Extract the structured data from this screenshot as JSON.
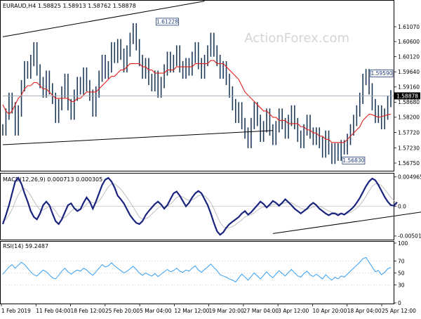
{
  "watermark": "ActionForex.com",
  "time_axis": [
    "1 Feb 2019",
    "11 Feb 04:00",
    "18 Feb 12:00",
    "25 Feb 20:00",
    "5 Mar 04:00",
    "12 Mar 12:00",
    "19 Mar 20:00",
    "27 Mar 04:00",
    "3 Apr 12:00",
    "10 Apr 20:00",
    "18 Apr 04:00",
    "25 Apr 12:00"
  ],
  "chart_data": [
    {
      "type": "line",
      "title": "EURAUD,H4  1.58825 1.58913 1.58762 1.58878",
      "ylim": [
        1.5655,
        1.6185
      ],
      "yticks": [
        "1.61070",
        "1.60600",
        "1.60120",
        "1.59640",
        "1.59160",
        "1.58680",
        "1.58200",
        "1.57720",
        "1.57230",
        "1.56750"
      ],
      "ytick_values": [
        1.6107,
        1.606,
        1.6012,
        1.5964,
        1.5916,
        1.5868,
        1.582,
        1.5772,
        1.5723,
        1.5675
      ],
      "current_price_label": "1.58878",
      "current_price": 1.58878,
      "annotations": [
        {
          "text": "1.61228",
          "x": 53,
          "y": 1.61228
        },
        {
          "text": "1.59590",
          "x": 130,
          "y": 1.5959
        },
        {
          "text": "1.56830",
          "x": 113,
          "y": 1.5683
        }
      ],
      "series": [
        {
          "values": [
            1.578,
            1.583,
            1.588,
            1.585,
            1.578,
            1.584,
            1.592,
            1.598,
            1.596,
            1.6,
            1.604,
            1.597,
            1.593,
            1.59,
            1.595,
            1.591,
            1.588,
            1.582,
            1.586,
            1.59,
            1.594,
            1.586,
            1.583,
            1.589,
            1.593,
            1.591,
            1.596,
            1.592,
            1.589,
            1.584,
            1.59,
            1.595,
            1.6,
            1.596,
            1.598,
            1.604,
            1.601,
            1.605,
            1.602,
            1.598,
            1.603,
            1.607,
            1.61,
            1.605,
            1.6,
            1.596,
            1.599,
            1.594,
            1.592,
            1.595,
            1.59,
            1.593,
            1.597,
            1.601,
            1.598,
            1.6,
            1.603,
            1.598,
            1.596,
            1.599,
            1.597,
            1.601,
            1.604,
            1.599,
            1.596,
            1.6,
            1.603,
            1.607,
            1.603,
            1.6,
            1.596,
            1.598,
            1.594,
            1.59,
            1.586,
            1.582,
            1.585,
            1.58,
            1.577,
            1.574,
            1.58,
            1.585,
            1.581,
            1.576,
            1.579,
            1.583,
            1.578,
            1.575,
            1.579,
            1.583,
            1.58,
            1.577,
            1.581,
            1.584,
            1.58,
            1.576,
            1.574,
            1.578,
            1.581,
            1.577,
            1.575,
            1.577,
            1.574,
            1.571,
            1.576,
            1.572,
            1.569,
            1.572,
            1.57,
            1.573,
            1.572,
            1.575,
            1.578,
            1.581,
            1.584,
            1.588,
            1.594,
            1.5955,
            1.591,
            1.586,
            1.582,
            1.584,
            1.58,
            1.583,
            1.587,
            1.5888
          ]
        },
        {
          "values": [
            1.586,
            1.584,
            1.583,
            1.584,
            1.586,
            1.588,
            1.589,
            1.591,
            1.592,
            1.592,
            1.593,
            1.593,
            1.592,
            1.591,
            1.591,
            1.59,
            1.589,
            1.588,
            1.588,
            1.588,
            1.588,
            1.588,
            1.587,
            1.587,
            1.588,
            1.588,
            1.589,
            1.59,
            1.59,
            1.59,
            1.59,
            1.591,
            1.592,
            1.593,
            1.594,
            1.595,
            1.595,
            1.596,
            1.597,
            1.597,
            1.598,
            1.599,
            1.599,
            1.599,
            1.599,
            1.598,
            1.598,
            1.597,
            1.597,
            1.596,
            1.596,
            1.596,
            1.596,
            1.597,
            1.597,
            1.597,
            1.598,
            1.598,
            1.598,
            1.598,
            1.598,
            1.598,
            1.599,
            1.599,
            1.599,
            1.599,
            1.599,
            1.6,
            1.6,
            1.599,
            1.599,
            1.599,
            1.598,
            1.597,
            1.596,
            1.595,
            1.594,
            1.592,
            1.59,
            1.589,
            1.588,
            1.587,
            1.586,
            1.585,
            1.584,
            1.584,
            1.583,
            1.582,
            1.582,
            1.581,
            1.581,
            1.581,
            1.58,
            1.58,
            1.58,
            1.58,
            1.579,
            1.579,
            1.578,
            1.578,
            1.577,
            1.577,
            1.576,
            1.576,
            1.575,
            1.575,
            1.574,
            1.574,
            1.574,
            1.574,
            1.574,
            1.575,
            1.576,
            1.577,
            1.578,
            1.579,
            1.581,
            1.582,
            1.583,
            1.5828,
            1.5824,
            1.582,
            1.5822,
            1.5825,
            1.5828,
            1.583
          ]
        }
      ],
      "trendlines": [
        {
          "x1": 0,
          "y1": 1.6075,
          "x2": 65,
          "y2": 1.6188
        },
        {
          "x1": 0,
          "y1": 1.5733,
          "x2": 87,
          "y2": 1.5778
        }
      ]
    },
    {
      "type": "line",
      "title": "MACD(12,26,9) 0.000713 0.000305",
      "ylim": [
        -0.0055,
        0.0053
      ],
      "yticks": [
        "0.004965",
        "0.0",
        "-0.005013"
      ],
      "ytick_values": [
        0.004965,
        0.0,
        -0.005013
      ],
      "series": [
        {
          "values": [
            -0.003,
            -0.0015,
            0.0002,
            0.0022,
            0.0042,
            0.0048,
            0.0038,
            0.0022,
            0.0008,
            -0.0008,
            -0.0018,
            -0.0022,
            -0.0012,
            0.0002,
            0.0008,
            0.0002,
            -0.0012,
            -0.0025,
            -0.003,
            -0.0022,
            -0.001,
            0.0002,
            0.0005,
            -0.0003,
            -0.0008,
            -0.0005,
            0.0006,
            0.0015,
            0.0008,
            -0.0004,
            0.0008,
            0.0022,
            0.0036,
            0.0045,
            0.0048,
            0.0042,
            0.0032,
            0.0018,
            0.0012,
            0.0005,
            -0.0005,
            -0.0015,
            -0.0022,
            -0.0028,
            -0.003,
            -0.0025,
            -0.0015,
            -0.0008,
            -0.0002,
            0.0004,
            0.0008,
            0.0003,
            -0.0004,
            0.0002,
            0.0012,
            0.0022,
            0.0025,
            0.0018,
            0.0009,
            0.0,
            0.0006,
            0.0015,
            0.0022,
            0.0026,
            0.0022,
            0.0012,
            0.0002,
            -0.0012,
            -0.0028,
            -0.0042,
            -0.0048,
            -0.0044,
            -0.0036,
            -0.003,
            -0.0026,
            -0.0022,
            -0.0018,
            -0.0012,
            -0.0008,
            -0.0014,
            -0.001,
            -0.0004,
            0.0002,
            0.0008,
            0.0004,
            -0.0002,
            0.0003,
            0.0009,
            0.0006,
            0.0001,
            0.0006,
            0.0012,
            0.0007,
            0.0002,
            -0.0004,
            -0.0008,
            -0.0012,
            -0.0008,
            -0.0004,
            0.0002,
            0.0006,
            0.0002,
            -0.0004,
            -0.0008,
            -0.0012,
            -0.0015,
            -0.0012,
            -0.0012,
            -0.0015,
            -0.0012,
            -0.0014,
            -0.001,
            -0.0006,
            -0.0001,
            0.0006,
            0.0014,
            0.0024,
            0.0034,
            0.0042,
            0.0047,
            0.0044,
            0.0036,
            0.0026,
            0.0016,
            0.0008,
            0.0002,
            0.0001,
            0.0007
          ]
        },
        {
          "values": [
            -0.0025,
            -0.0022,
            -0.0015,
            -0.0005,
            0.0008,
            0.002,
            0.0028,
            0.003,
            0.0026,
            0.0018,
            0.0009,
            0.0001,
            -0.0006,
            -0.0006,
            -0.0003,
            0.0,
            -0.0002,
            -0.0008,
            -0.0016,
            -0.002,
            -0.0019,
            -0.0014,
            -0.0008,
            -0.0004,
            -0.0004,
            -0.0005,
            -0.0002,
            0.0004,
            0.0008,
            0.0006,
            0.0005,
            0.0009,
            0.0016,
            0.0025,
            0.0033,
            0.0038,
            0.0038,
            0.0034,
            0.0029,
            0.0022,
            0.0015,
            0.0007,
            -0.0001,
            -0.001,
            -0.0018,
            -0.0022,
            -0.0021,
            -0.0018,
            -0.0013,
            -0.0008,
            -0.0003,
            0.0,
            0.0,
            0.0,
            0.0004,
            0.0009,
            0.0015,
            0.0017,
            0.0016,
            0.0012,
            0.001,
            0.0011,
            0.0014,
            0.0018,
            0.0019,
            0.0018,
            0.0013,
            0.0006,
            -0.0004,
            -0.0016,
            -0.0027,
            -0.0034,
            -0.0037,
            -0.0036,
            -0.0034,
            -0.0031,
            -0.0027,
            -0.0023,
            -0.0018,
            -0.0016,
            -0.0014,
            -0.0011,
            -0.0007,
            -0.0003,
            -0.0001,
            -0.0001,
            0.0,
            0.0003,
            0.0004,
            0.0004,
            0.0004,
            0.0006,
            0.0007,
            0.0006,
            0.0003,
            0.0,
            -0.0003,
            -0.0005,
            -0.0005,
            -0.0003,
            -0.0001,
            0.0,
            0.0,
            -0.0002,
            -0.0005,
            -0.0008,
            -0.001,
            -0.0011,
            -0.0012,
            -0.0012,
            -0.0013,
            -0.0012,
            -0.001,
            -0.0007,
            -0.0003,
            0.0002,
            0.0009,
            0.0017,
            0.0026,
            0.0034,
            0.0038,
            0.0038,
            0.0035,
            0.0029,
            0.0022,
            0.0015,
            0.001,
            0.0003
          ]
        }
      ],
      "trendline": {
        "x1": 87,
        "y1": -0.0046,
        "x2": 145,
        "y2": -0.0002
      }
    },
    {
      "type": "line",
      "title": "RSI(14) 59.2487",
      "ylim": [
        0,
        100
      ],
      "yticks": [
        "100",
        "70",
        "50",
        "30",
        "0"
      ],
      "ytick_values": [
        100,
        70,
        50,
        30,
        0
      ],
      "series": [
        {
          "values": [
            48,
            54,
            60,
            64,
            58,
            63,
            68,
            64,
            58,
            52,
            47,
            45,
            50,
            55,
            52,
            47,
            42,
            40,
            46,
            53,
            58,
            52,
            48,
            52,
            55,
            53,
            58,
            55,
            50,
            46,
            52,
            58,
            64,
            60,
            62,
            67,
            62,
            58,
            54,
            50,
            53,
            57,
            61,
            56,
            50,
            46,
            50,
            47,
            45,
            49,
            44,
            48,
            52,
            56,
            52,
            54,
            58,
            53,
            51,
            55,
            53,
            58,
            62,
            55,
            51,
            56,
            60,
            65,
            59,
            54,
            47,
            45,
            43,
            40,
            38,
            35,
            42,
            48,
            43,
            38,
            44,
            50,
            45,
            40,
            46,
            52,
            46,
            42,
            48,
            54,
            49,
            45,
            51,
            56,
            50,
            45,
            43,
            49,
            53,
            47,
            44,
            48,
            44,
            40,
            47,
            42,
            38,
            43,
            40,
            45,
            43,
            48,
            53,
            58,
            63,
            68,
            74,
            76,
            68,
            60,
            52,
            54,
            47,
            51,
            57,
            59.2
          ]
        }
      ]
    }
  ]
}
